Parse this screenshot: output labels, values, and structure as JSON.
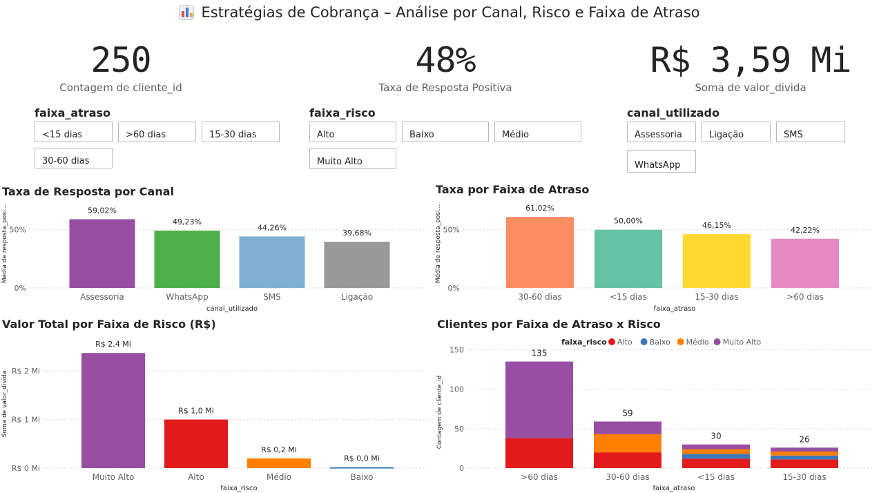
{
  "header": {
    "title": "Estratégias de Cobrança – Análise por Canal, Risco e Faixa de Atraso",
    "icon": "bar-chart-icon"
  },
  "kpis": [
    {
      "value": "250",
      "label": "Contagem de cliente_id"
    },
    {
      "value": "48%",
      "label": "Taxa de Resposta Positiva"
    },
    {
      "value": "R$ 3,59 Mi",
      "label": "Soma de valor_divida"
    }
  ],
  "slicers": {
    "faixa_atraso": {
      "title": "faixa_atraso",
      "options": [
        "<15 dias",
        ">60 dias",
        "15-30 dias",
        "30-60 dias"
      ]
    },
    "faixa_risco": {
      "title": "faixa_risco",
      "options": [
        "Alto",
        "Baixo",
        "Médio",
        "Muito Alto"
      ]
    },
    "canal_utilizado": {
      "title": "canal_utilizado",
      "options": [
        "Assessoria",
        "Ligação",
        "SMS",
        "WhatsApp"
      ]
    }
  },
  "colors": {
    "alto": "#E31A1C",
    "baixo": "#3A77B8",
    "medio": "#FF7F00",
    "muito_alto": "#984EA3"
  },
  "chart_data": [
    {
      "type": "bar",
      "title": "Taxa de Resposta por Canal",
      "xlabel": "canal_utilizado",
      "ylabel": "Média de resposta_posi...",
      "categories": [
        "Assessoria",
        "WhatsApp",
        "SMS",
        "Ligação"
      ],
      "values": [
        59.02,
        49.23,
        44.26,
        39.68
      ],
      "data_labels": [
        "59,02%",
        "49,23%",
        "44,26%",
        "39,68%"
      ],
      "colors": [
        "#984EA3",
        "#4DAF4A",
        "#7FB0D3",
        "#999999"
      ],
      "yticks": [
        "0%",
        "50%"
      ],
      "ylim": [
        0,
        70
      ]
    },
    {
      "type": "bar",
      "title": "Taxa por Faixa de Atraso",
      "xlabel": "faixa_atraso",
      "ylabel": "Média de resposta_posi...",
      "categories": [
        "30-60 dias",
        "<15 dias",
        "15-30 dias",
        ">60 dias"
      ],
      "values": [
        61.02,
        50.0,
        46.15,
        42.22
      ],
      "data_labels": [
        "61,02%",
        "50,00%",
        "46,15%",
        "42,22%"
      ],
      "colors": [
        "#FC8D62",
        "#66C2A5",
        "#FFD92F",
        "#E78AC3"
      ],
      "yticks": [
        "0%",
        "50%"
      ],
      "ylim": [
        0,
        70
      ]
    },
    {
      "type": "bar",
      "title": "Valor Total por Faixa de Risco (R$)",
      "xlabel": "faixa_risco",
      "ylabel": "Soma de valor_divida",
      "categories": [
        "Muito Alto",
        "Alto",
        "Médio",
        "Baixo"
      ],
      "values": [
        2.37,
        1.0,
        0.2,
        0.02
      ],
      "data_labels": [
        "R$ 2,4 Mi",
        "R$ 1,0 Mi",
        "R$ 0,2 Mi",
        "R$ 0,0 Mi"
      ],
      "colors": [
        "#984EA3",
        "#E31A1C",
        "#FF7F00",
        "#3A77B8"
      ],
      "yticks": [
        "R$ 0 Mi",
        "R$ 1 Mi",
        "R$ 2 Mi"
      ],
      "ylim": [
        0,
        2.6
      ]
    },
    {
      "type": "bar",
      "stacked": true,
      "title": "Clientes por Faixa de Atraso x Risco",
      "xlabel": "faixa_atraso",
      "ylabel": "Contagem de cliente_id",
      "legend_title": "faixa_risco",
      "legend": "top",
      "categories": [
        ">60 dias",
        "30-60 dias",
        "<15 dias",
        "15-30 dias"
      ],
      "totals": [
        135,
        59,
        30,
        26
      ],
      "series": [
        {
          "name": "Alto",
          "values": [
            38,
            20,
            12,
            11
          ]
        },
        {
          "name": "Baixo",
          "values": [
            0,
            0,
            6,
            5
          ]
        },
        {
          "name": "Médio",
          "values": [
            0,
            23,
            6,
            5
          ]
        },
        {
          "name": "Muito Alto",
          "values": [
            97,
            16,
            6,
            5
          ]
        }
      ],
      "yticks": [
        "0",
        "50",
        "100",
        "150"
      ],
      "ylim": [
        0,
        160
      ]
    }
  ]
}
